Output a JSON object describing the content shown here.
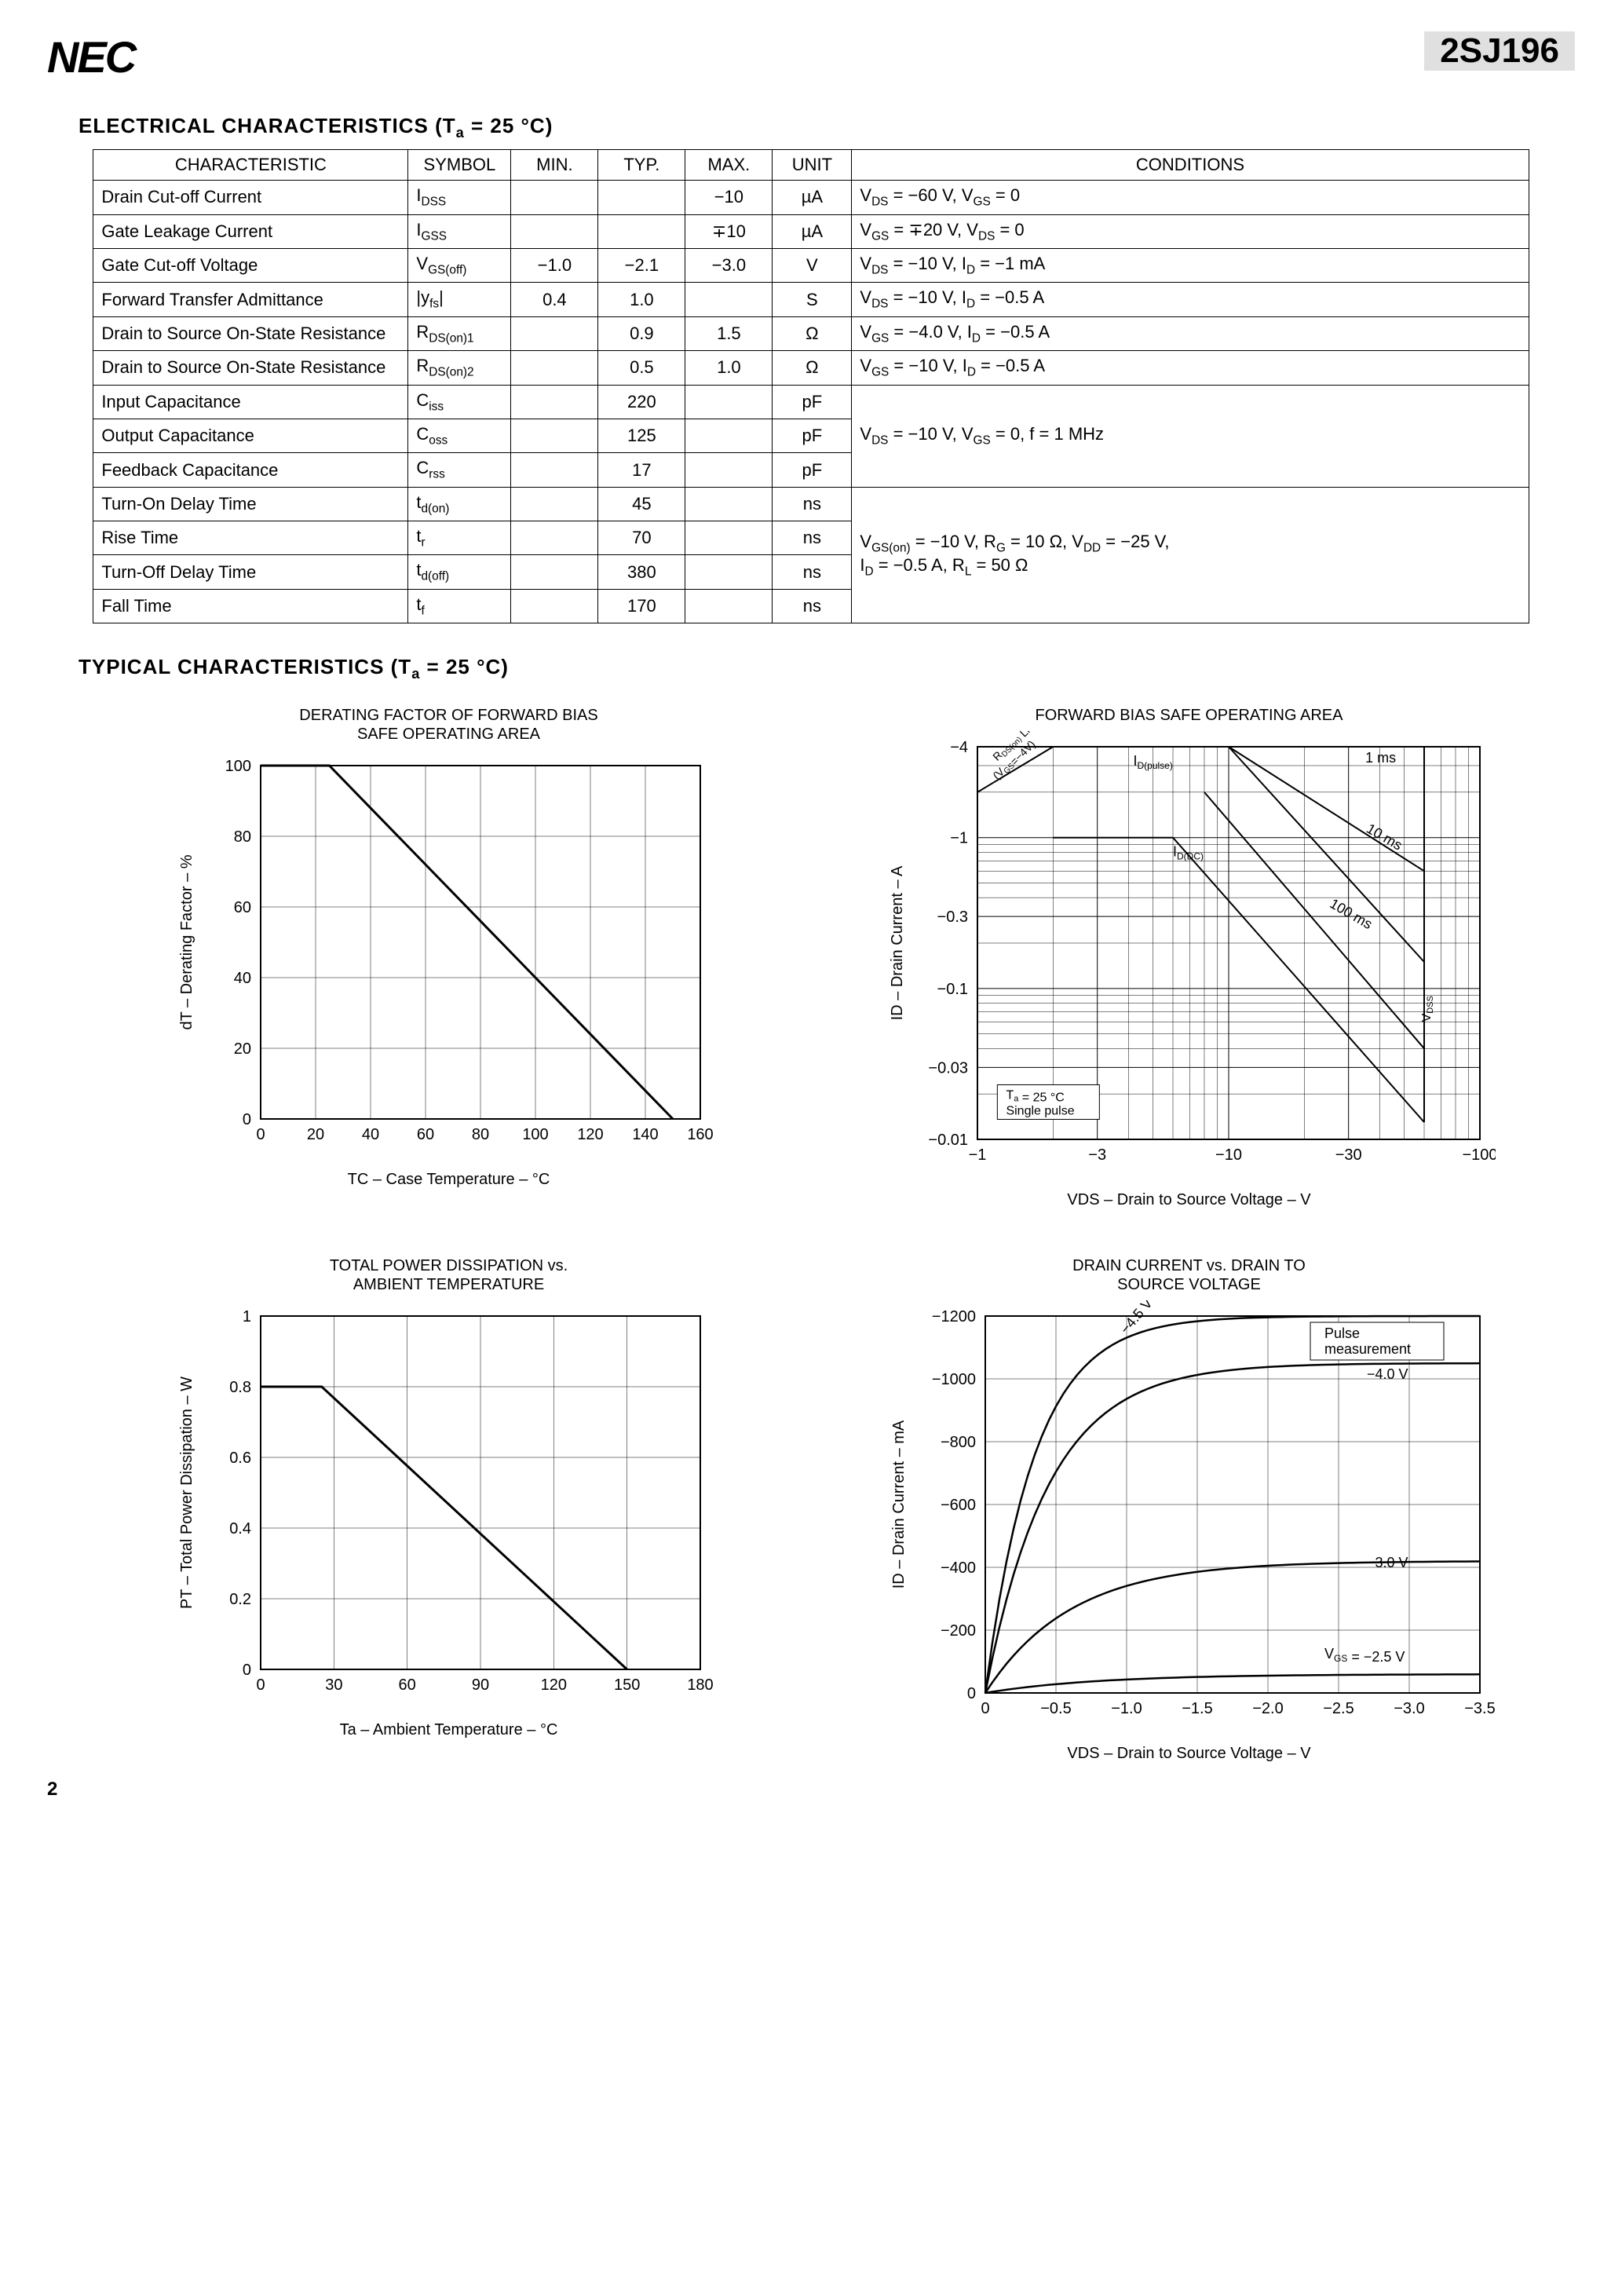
{
  "header": {
    "logo": "NEC",
    "part_number": "2SJ196"
  },
  "section1": {
    "title": "ELECTRICAL CHARACTERISTICS (T",
    "title_sub": "a",
    "title_rest": " = 25 °C)"
  },
  "table": {
    "headers": [
      "CHARACTERISTIC",
      "SYMBOL",
      "MIN.",
      "TYP.",
      "MAX.",
      "UNIT",
      "CONDITIONS"
    ],
    "rows": [
      {
        "char": "Drain Cut-off Current",
        "sym": "I",
        "sub": "DSS",
        "min": "",
        "typ": "",
        "max": "−10",
        "unit": "µA",
        "cond": "V",
        "csub": "DS",
        "crest": " = −60 V, V",
        "csub2": "GS",
        "crest2": " = 0"
      },
      {
        "char": "Gate Leakage Current",
        "sym": "I",
        "sub": "GSS",
        "min": "",
        "typ": "",
        "max": "∓10",
        "unit": "µA",
        "cond": "V",
        "csub": "GS",
        "crest": " = ∓20 V, V",
        "csub2": "DS",
        "crest2": " = 0"
      },
      {
        "char": "Gate Cut-off Voltage",
        "sym": "V",
        "sub": "GS(off)",
        "min": "−1.0",
        "typ": "−2.1",
        "max": "−3.0",
        "unit": "V",
        "cond": "V",
        "csub": "DS",
        "crest": " = −10 V, I",
        "csub2": "D",
        "crest2": " = −1 mA"
      },
      {
        "char": "Forward Transfer Admittance",
        "sym": "|y",
        "sub": "fs",
        "symrest": "|",
        "min": "0.4",
        "typ": "1.0",
        "max": "",
        "unit": "S",
        "cond": "V",
        "csub": "DS",
        "crest": " = −10 V, I",
        "csub2": "D",
        "crest2": " = −0.5 A"
      },
      {
        "char": "Drain to Source On-State Resistance",
        "sym": "R",
        "sub": "DS(on)1",
        "min": "",
        "typ": "0.9",
        "max": "1.5",
        "unit": "Ω",
        "cond": "V",
        "csub": "GS",
        "crest": " = −4.0 V, I",
        "csub2": "D",
        "crest2": " = −0.5 A"
      },
      {
        "char": "Drain to Source On-State Resistance",
        "sym": "R",
        "sub": "DS(on)2",
        "min": "",
        "typ": "0.5",
        "max": "1.0",
        "unit": "Ω",
        "cond": "V",
        "csub": "GS",
        "crest": " = −10 V, I",
        "csub2": "D",
        "crest2": " = −0.5 A"
      },
      {
        "char": "Input Capacitance",
        "sym": "C",
        "sub": "iss",
        "min": "",
        "typ": "220",
        "max": "",
        "unit": "pF",
        "cond": ""
      },
      {
        "char": "Output Capacitance",
        "sym": "C",
        "sub": "oss",
        "min": "",
        "typ": "125",
        "max": "",
        "unit": "pF",
        "cond": "V",
        "csub": "DS",
        "crest": " = −10 V, V",
        "csub2": "GS",
        "crest2": " = 0, f = 1 MHz"
      },
      {
        "char": "Feedback Capacitance",
        "sym": "C",
        "sub": "rss",
        "min": "",
        "typ": "17",
        "max": "",
        "unit": "pF",
        "cond": ""
      },
      {
        "char": "Turn-On Delay Time",
        "sym": "t",
        "sub": "d(on)",
        "min": "",
        "typ": "45",
        "max": "",
        "unit": "ns",
        "cond": ""
      },
      {
        "char": "Rise Time",
        "sym": "t",
        "sub": "r",
        "min": "",
        "typ": "70",
        "max": "",
        "unit": "ns",
        "cond": "V",
        "csub": "GS(on)",
        "crest": " = −10 V, R",
        "csub2": "G",
        "crest2": " = 10 Ω, V",
        "csub3": "DD",
        "crest3": " = −25 V,"
      },
      {
        "char": "Turn-Off Delay Time",
        "sym": "t",
        "sub": "d(off)",
        "min": "",
        "typ": "380",
        "max": "",
        "unit": "ns",
        "cond": "I",
        "csub": "D",
        "crest": " = −0.5 A, R",
        "csub2": "L",
        "crest2": " = 50 Ω"
      },
      {
        "char": "Fall Time",
        "sym": "t",
        "sub": "f",
        "min": "",
        "typ": "170",
        "max": "",
        "unit": "ns",
        "cond": ""
      }
    ],
    "cap_group_cond": "VDS = −10 V, VGS = 0, f = 1 MHz",
    "switch_group_cond": "VGS(on) = −10 V, RG = 10 Ω, VDD = −25 V, ID = −0.5 A, RL = 50 Ω"
  },
  "section2": {
    "title": "TYPICAL CHARACTERISTICS (T",
    "title_sub": "a",
    "title_rest": " = 25 °C)"
  },
  "chart1": {
    "title": "DERATING FACTOR OF FORWARD BIAS\nSAFE OPERATING AREA",
    "xlabel": "TC – Case Temperature – °C",
    "ylabel": "dT – Derating Factor – %",
    "xticks": [
      0,
      20,
      40,
      60,
      80,
      100,
      120,
      140,
      160
    ],
    "yticks": [
      0,
      20,
      40,
      60,
      80,
      100
    ],
    "line": [
      [
        0,
        100
      ],
      [
        25,
        100
      ],
      [
        150,
        0
      ]
    ],
    "line_color": "#000",
    "grid_color": "#000"
  },
  "chart2": {
    "title": "FORWARD BIAS SAFE OPERATING AREA",
    "xlabel": "VDS – Drain to Source Voltage – V",
    "ylabel": "ID – Drain Current – A",
    "xticks_labels": [
      "−1",
      "−3",
      "−10",
      "−30",
      "−100"
    ],
    "yticks_labels": [
      "−0.01",
      "−0.03",
      "−0.1",
      "−0.3",
      "−1",
      "−4"
    ],
    "annotations": [
      "ID(pulse)",
      "ID(DC)",
      "1 ms",
      "10 ms",
      "100 ms",
      "Ta = 25 °C",
      "Single pulse",
      "RDS(on) Limited",
      "VGS=-4V",
      "VDSS"
    ],
    "line_color": "#000"
  },
  "chart3": {
    "title": "TOTAL POWER DISSIPATION vs.\nAMBIENT TEMPERATURE",
    "xlabel": "Ta – Ambient Temperature – °C",
    "ylabel": "PT – Total Power Dissipation – W",
    "xticks": [
      0,
      30,
      60,
      90,
      120,
      150,
      180
    ],
    "yticks": [
      0,
      0.2,
      0.4,
      0.6,
      0.8,
      1.0
    ],
    "line": [
      [
        0,
        0.8
      ],
      [
        25,
        0.8
      ],
      [
        150,
        0
      ]
    ],
    "line_color": "#000"
  },
  "chart4": {
    "title": "DRAIN CURRENT vs. DRAIN TO\nSOURCE VOLTAGE",
    "xlabel": "VDS – Drain to Source Voltage – V",
    "ylabel": "ID – Drain Current – mA",
    "xticks_labels": [
      "0",
      "−0.5",
      "−1.0",
      "−1.5",
      "−2.0",
      "−2.5",
      "−3.0",
      "−3.5"
    ],
    "yticks": [
      0,
      -200,
      -400,
      -600,
      -800,
      -1000,
      -1200
    ],
    "yticks_labels": [
      "0",
      "−200",
      "−400",
      "−600",
      "−800",
      "−1000",
      "−1200"
    ],
    "curves_labels": [
      "−4.5 V",
      "−4.0 V",
      "−3.0 V",
      "VGS = −2.5 V"
    ],
    "annotations": [
      "Pulse",
      "measurement"
    ],
    "line_color": "#000"
  },
  "page_number": "2"
}
